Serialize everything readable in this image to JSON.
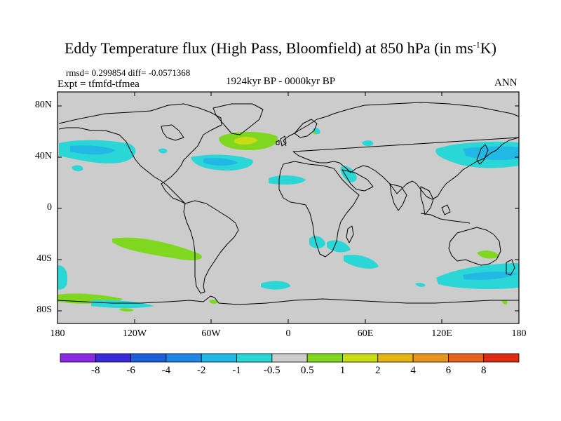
{
  "title": {
    "main": "Eddy Temperature flux (High Pass, Bloomfield) at 850 hPa (in ms",
    "sup": "-1",
    "end": "K)"
  },
  "stats": "rmsd= 0.299854 diff= -0.0571368",
  "expt": "Expt = tfmfd-tfmea",
  "period": "1924kyr BP - 0000kyr BP",
  "season": "ANN",
  "lat_labels": [
    "80N",
    "40N",
    "0",
    "40S",
    "80S"
  ],
  "lon_labels": [
    "180",
    "120W",
    "60W",
    "0",
    "60E",
    "120E",
    "180"
  ],
  "colorbar": {
    "labels": [
      "-8",
      "-6",
      "-4",
      "-2",
      "-1",
      "-0.5",
      "0.5",
      "1",
      "2",
      "4",
      "6",
      "8"
    ],
    "colors": [
      "#8a2be2",
      "#3a2ad8",
      "#1f5fd8",
      "#1f86e6",
      "#22b8e6",
      "#2bd6d6",
      "#cccccc",
      "#7fd81f",
      "#c8dc14",
      "#e6b414",
      "#e6961e",
      "#e6641e",
      "#dc2d14"
    ]
  },
  "colors": {
    "land_ocean": "#cccccc",
    "negative_small": "#2bd6d6",
    "negative_mid": "#22b8e6",
    "positive_small": "#7fd81f",
    "positive_mid": "#c8dc14"
  }
}
